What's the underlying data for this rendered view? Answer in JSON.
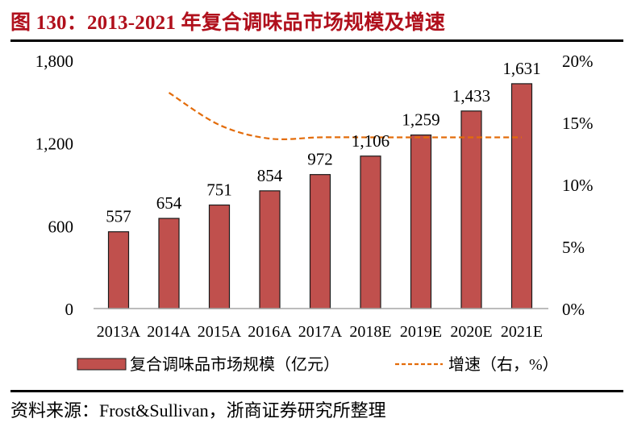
{
  "title": "图 130：2013-2021 年复合调味品市场规模及增速",
  "source": "资料来源：Frost&Sullivan，浙商证券研究所整理",
  "colors": {
    "title": "#b0101c",
    "bar_fill": "#c0504d",
    "bar_stroke": "#1a1a1a",
    "line": "#e36c0a",
    "axis": "#a6a6a6"
  },
  "chart_data": {
    "type": "bar",
    "title": "2013-2021 年复合调味品市场规模及增速",
    "categories": [
      "2013A",
      "2014A",
      "2015A",
      "2016A",
      "2017A",
      "2018E",
      "2019E",
      "2020E",
      "2021E"
    ],
    "series": [
      {
        "name": "复合调味品市场规模（亿元）",
        "type": "bar",
        "axis": "left",
        "values": [
          557,
          654,
          751,
          854,
          972,
          1106,
          1259,
          1433,
          1631
        ],
        "labels": [
          "557",
          "654",
          "751",
          "854",
          "972",
          "1,106",
          "1,259",
          "1,433",
          "1,631"
        ]
      },
      {
        "name": "增速（右，%）",
        "type": "line",
        "style": "dashed",
        "axis": "right",
        "values": [
          null,
          17.4,
          14.8,
          13.7,
          13.8,
          13.8,
          13.8,
          13.8,
          13.8
        ]
      }
    ],
    "left_axis": {
      "ylim": [
        0,
        1800
      ],
      "ticks": [
        0,
        600,
        1200,
        1800
      ],
      "tick_labels": [
        "0",
        "600",
        "1,200",
        "1,800"
      ]
    },
    "right_axis": {
      "ylim": [
        0,
        20
      ],
      "ticks": [
        0,
        5,
        10,
        15,
        20
      ],
      "tick_labels": [
        "0%",
        "5%",
        "10%",
        "15%",
        "20%"
      ]
    },
    "xlabel": "",
    "ylabel": "",
    "grid": false,
    "legend_position": "bottom",
    "legend": [
      "复合调味品市场规模（亿元）",
      "增速（右，%）"
    ]
  }
}
